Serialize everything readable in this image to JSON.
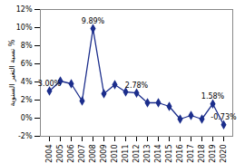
{
  "chart_data": {
    "type": "line",
    "y_label": "نسبة التغير السنوية %",
    "categories": [
      "2004",
      "2005",
      "2006",
      "2007",
      "2008",
      "2009",
      "2010",
      "2011",
      "2012",
      "2013",
      "2014",
      "2015",
      "2016",
      "2017",
      "2018",
      "2019",
      "2020"
    ],
    "values": [
      3.0,
      4.1,
      3.8,
      1.9,
      9.89,
      2.7,
      3.7,
      2.9,
      2.78,
      1.7,
      1.7,
      1.3,
      -0.1,
      0.3,
      -0.1,
      1.58,
      -0.73
    ],
    "value_labels": [
      "3.00%",
      null,
      null,
      null,
      "9.89%",
      null,
      null,
      null,
      "2.78%",
      null,
      null,
      null,
      null,
      null,
      null,
      "1.58%",
      "-0.73%"
    ],
    "color": "#1c2e8c",
    "marker": "diamond",
    "line_style": "solid",
    "ylim": [
      -2,
      12
    ],
    "yticks": [
      {
        "value": -2,
        "label": "-2%"
      },
      {
        "value": 0,
        "label": "0%"
      },
      {
        "value": 2,
        "label": "2%"
      },
      {
        "value": 4,
        "label": "4%"
      },
      {
        "value": 6,
        "label": "6%"
      },
      {
        "value": 8,
        "label": "8%"
      },
      {
        "value": 10,
        "label": "10%"
      },
      {
        "value": 12,
        "label": "12%"
      }
    ],
    "grid": false
  }
}
